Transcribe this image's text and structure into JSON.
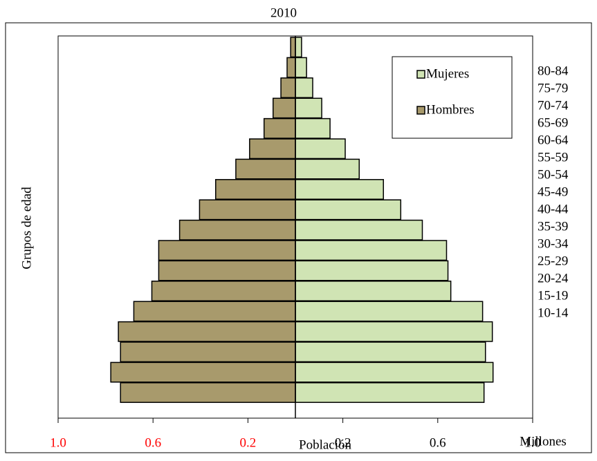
{
  "chart_data": {
    "type": "pyramid",
    "title": "2010",
    "x_label": "Población",
    "y_label": "Grupos de edad",
    "unit_label": "Millones",
    "categories": [
      null,
      "80-84",
      "75-79",
      "70-74",
      "65-69",
      "60-64",
      "55-59",
      "50-54",
      "45-49",
      "40-44",
      "35-39",
      "30-34",
      "25-29",
      "20-24",
      "15-19",
      "10-14",
      null,
      null
    ],
    "series": [
      {
        "name": "Mujeres",
        "color": "#d0e4b4",
        "values": [
          0.026,
          0.047,
          0.073,
          0.111,
          0.146,
          0.21,
          0.269,
          0.371,
          0.444,
          0.535,
          0.637,
          0.643,
          0.655,
          0.789,
          0.83,
          0.801,
          0.833,
          0.795
        ]
      },
      {
        "name": "Hombres",
        "color": "#a89a6c",
        "values": [
          -0.02,
          -0.035,
          -0.061,
          -0.094,
          -0.132,
          -0.193,
          -0.251,
          -0.336,
          -0.404,
          -0.488,
          -0.576,
          -0.576,
          -0.605,
          -0.681,
          -0.746,
          -0.737,
          -0.778,
          -0.737
        ]
      }
    ],
    "xlim": [
      -1,
      1
    ],
    "xticks": [
      {
        "value": -1,
        "label": "1.0"
      },
      {
        "value": -0.6,
        "label": "0.6"
      },
      {
        "value": -0.2,
        "label": "0.2"
      },
      0.2,
      0.6,
      {
        "value": 1,
        "label": "1.0"
      }
    ],
    "negative_tick_color": "#ff0000",
    "legend": "upper right"
  }
}
